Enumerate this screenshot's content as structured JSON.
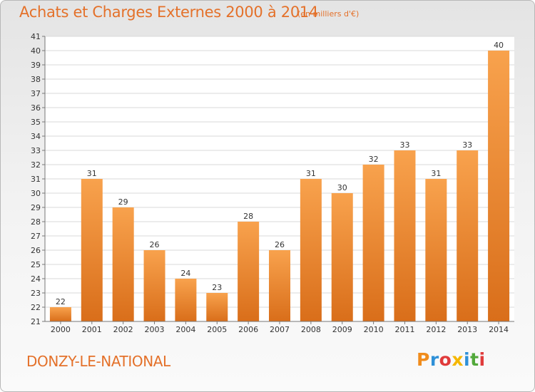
{
  "header": {
    "title": "Achats et Charges Externes 2000 à 2014",
    "subtitle": "(en milliers d'€)"
  },
  "footer": {
    "commune": "DONZY-LE-NATIONAL",
    "logo_text": "Proxiti",
    "logo_letter_colors": [
      "#f08c1c",
      "#2e90d8",
      "#e03b3b",
      "#f5b700",
      "#2e90d8",
      "#52a93b",
      "#e03b3b"
    ]
  },
  "colors": {
    "bar_light": "#f8a24d",
    "bar_dark": "#d96e1a",
    "accent": "#e4712a"
  },
  "chart_data": {
    "type": "bar",
    "title": "Achats et Charges Externes 2000 à 2014",
    "subtitle": "(en milliers d'€)",
    "categories": [
      "2000",
      "2001",
      "2002",
      "2003",
      "2004",
      "2005",
      "2006",
      "2007",
      "2008",
      "2009",
      "2010",
      "2011",
      "2012",
      "2013",
      "2014"
    ],
    "values": [
      22,
      31,
      29,
      26,
      24,
      23,
      28,
      26,
      31,
      30,
      32,
      33,
      31,
      33,
      40
    ],
    "ylim": [
      21,
      41
    ],
    "yticks": [
      21,
      22,
      23,
      24,
      25,
      26,
      27,
      28,
      29,
      30,
      31,
      32,
      33,
      34,
      35,
      36,
      37,
      38,
      39,
      40,
      41
    ],
    "grid": true,
    "xlabel": "",
    "ylabel": ""
  }
}
